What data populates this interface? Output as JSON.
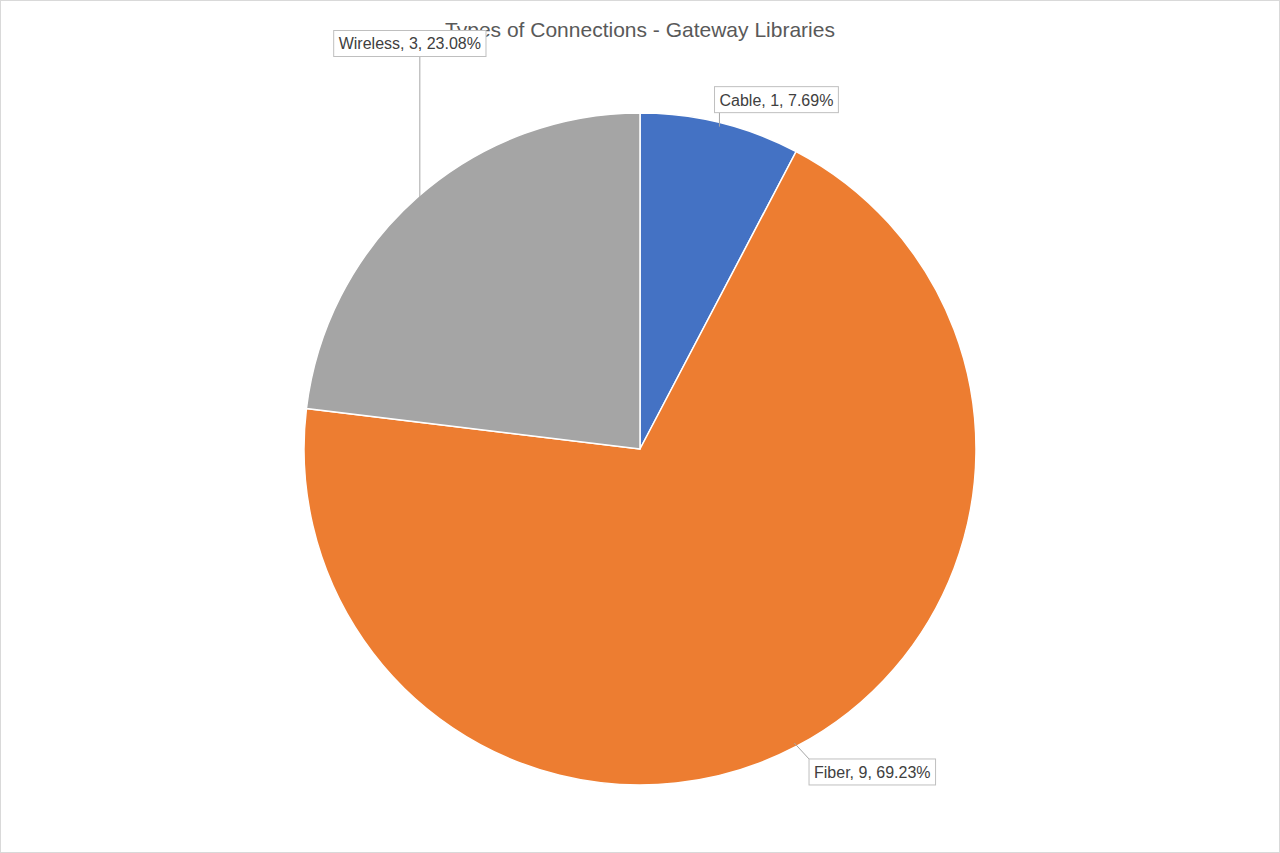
{
  "chart_data": {
    "type": "pie",
    "title": "Types of Connections - Gateway Libraries",
    "categories": [
      "Cable",
      "Fiber",
      "Wireless"
    ],
    "values": [
      1,
      9,
      3
    ],
    "value_labels": [
      "1, 7.69%",
      "9, 69.23%",
      "3, 23.08%"
    ],
    "colors": [
      "#4472c4",
      "#ed7d31",
      "#a5a5a5"
    ],
    "data_labels": true
  }
}
